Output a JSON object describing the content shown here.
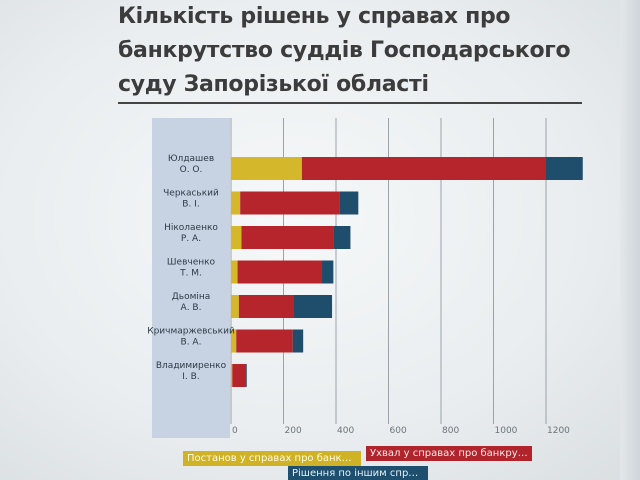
{
  "title": "Кількість рішень у справах про банкрутство суддів Господарського суду Запорізької області",
  "colors": {
    "series_0": "#d4b72a",
    "series_1": "#b5252b",
    "series_2": "#1f4e6c",
    "label_panel": "#c7d3e2",
    "grid": "#9aa3aa"
  },
  "chart_data": {
    "type": "bar",
    "orientation": "horizontal",
    "stacked": true,
    "categories": [
      [
        "Юлдашев",
        "О. О."
      ],
      [
        "Черкаський",
        "В. І."
      ],
      [
        "Ніколаенко",
        "Р. А."
      ],
      [
        "Шевченко",
        "Т. М."
      ],
      [
        "Дьоміна",
        "А. В."
      ],
      [
        "Кричмаржевський",
        "В. А."
      ],
      [
        "Владимиренко",
        "І. В."
      ]
    ],
    "series": [
      {
        "name": "Постанов у справах про банкрутст...",
        "values": [
          270,
          35,
          40,
          25,
          30,
          20,
          5
        ]
      },
      {
        "name": "Ухвал у справах про банкрутство",
        "values": [
          930,
          380,
          350,
          320,
          210,
          215,
          50
        ]
      },
      {
        "name": "Рішення по іншим справам",
        "values": [
          140,
          70,
          65,
          45,
          145,
          40,
          5
        ]
      }
    ],
    "x_ticks": [
      "0",
      "200",
      "400",
      "600",
      "800",
      "1000",
      "1200"
    ],
    "xlim": [
      0,
      1300
    ],
    "grid": true,
    "legend_position": "bottom"
  }
}
